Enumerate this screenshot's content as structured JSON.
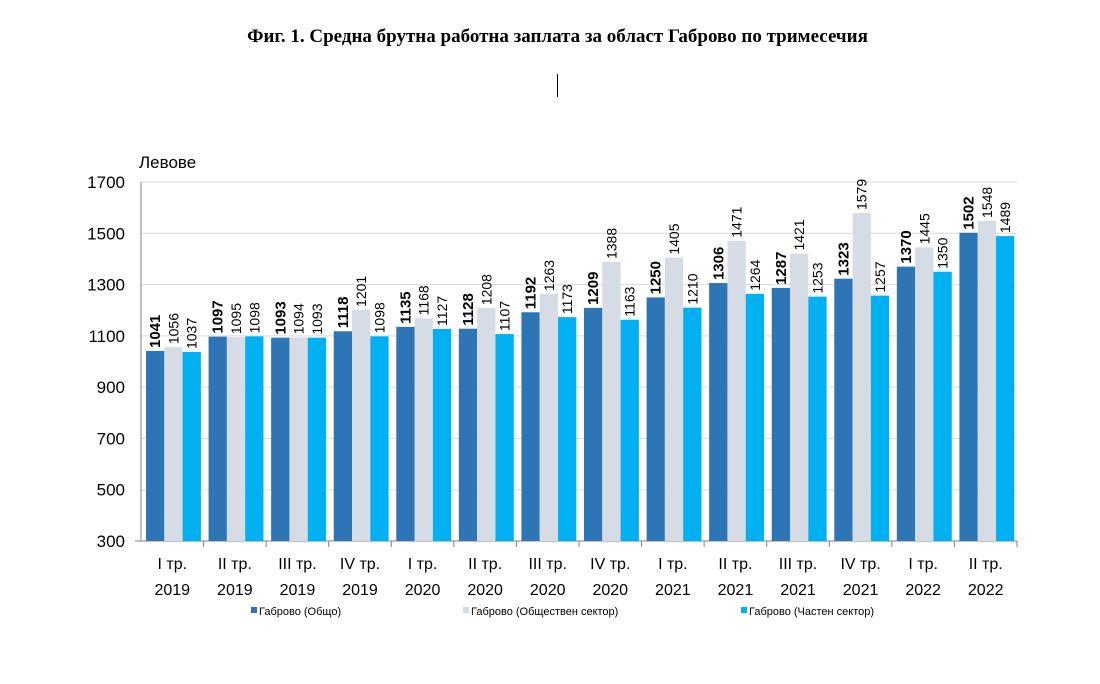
{
  "title": "Фиг. 1. Средна брутна работна заплата за област Габрово по тримесечия",
  "chart_data": {
    "type": "bar",
    "ylabel": "Левове",
    "ylim": [
      300,
      1700
    ],
    "yticks": [
      300,
      500,
      700,
      900,
      1100,
      1300,
      1500,
      1700
    ],
    "grid": true,
    "legend_position": "bottom",
    "categories": [
      [
        "I тр.",
        "2019"
      ],
      [
        "II тр.",
        "2019"
      ],
      [
        "III тр.",
        "2019"
      ],
      [
        "IV тр.",
        "2019"
      ],
      [
        "I тр.",
        "2020"
      ],
      [
        "II тр.",
        "2020"
      ],
      [
        "III тр.",
        "2020"
      ],
      [
        "IV тр.",
        "2020"
      ],
      [
        "I тр.",
        "2021"
      ],
      [
        "II тр.",
        "2021"
      ],
      [
        "III тр.",
        "2021"
      ],
      [
        "IV тр.",
        "2021"
      ],
      [
        "I тр.",
        "2022"
      ],
      [
        "II тр.",
        "2022"
      ]
    ],
    "series": [
      {
        "name": "Габрово (Общо)",
        "color": "#2e75b6",
        "values": [
          1041,
          1097,
          1093,
          1118,
          1135,
          1128,
          1192,
          1209,
          1250,
          1306,
          1287,
          1323,
          1370,
          1502
        ]
      },
      {
        "name": "Габрово (Обществен сектор)",
        "color": "#d6dce5",
        "values": [
          1056,
          1095,
          1094,
          1201,
          1168,
          1208,
          1263,
          1388,
          1405,
          1471,
          1421,
          1579,
          1445,
          1548
        ]
      },
      {
        "name": "Габрово (Частен сектор)",
        "color": "#00b0f0",
        "values": [
          1037,
          1098,
          1093,
          1098,
          1127,
          1107,
          1173,
          1163,
          1210,
          1264,
          1253,
          1257,
          1350,
          1489
        ]
      }
    ]
  }
}
